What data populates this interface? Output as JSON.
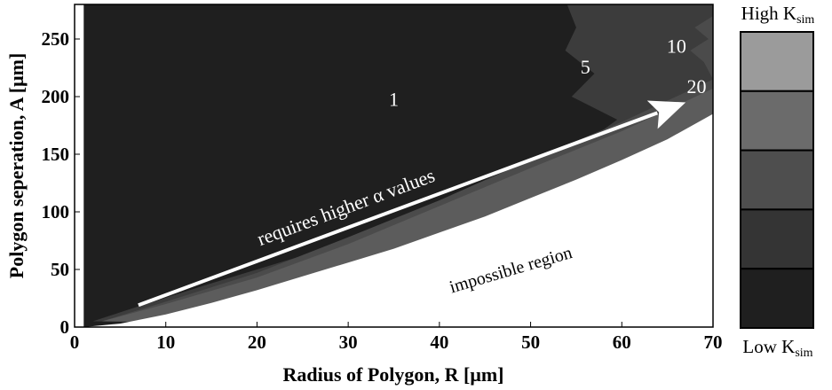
{
  "chart_data": {
    "type": "contour",
    "xlabel": "Radius of Polygon, R [μm]",
    "ylabel": "Polygon seperation, A [μm]",
    "xlim": [
      0,
      70
    ],
    "ylim": [
      0,
      280
    ],
    "xticks": [
      0,
      10,
      20,
      30,
      40,
      50,
      60,
      70
    ],
    "yticks": [
      0,
      50,
      100,
      150,
      200,
      250
    ],
    "contour_labels": [
      "1",
      "5",
      "10",
      "20"
    ],
    "regions": [
      {
        "name": "1",
        "color": "#1f1f1f",
        "boundary": [
          [
            31.5,
            280
          ],
          [
            30.5,
            250
          ],
          [
            31.2,
            230
          ],
          [
            30.8,
            200
          ],
          [
            31.5,
            180
          ],
          [
            30.7,
            160
          ],
          [
            31.8,
            140
          ],
          [
            30.5,
            120
          ],
          [
            31.0,
            100
          ],
          [
            26.0,
            85
          ],
          [
            20.0,
            66
          ],
          [
            15.0,
            50
          ],
          [
            10.0,
            34
          ],
          [
            5.0,
            17
          ],
          [
            2.0,
            6
          ]
        ]
      },
      {
        "name": "5",
        "color": "#3c3c3c",
        "boundary": [
          [
            54.0,
            280
          ],
          [
            55.0,
            260
          ],
          [
            53.8,
            240
          ],
          [
            57.0,
            220
          ],
          [
            54.5,
            200
          ],
          [
            59.5,
            180
          ],
          [
            56.0,
            160
          ],
          [
            58.5,
            145
          ],
          [
            55.0,
            135
          ],
          [
            45.0,
            115
          ],
          [
            35.0,
            90
          ],
          [
            25.0,
            62
          ],
          [
            15.0,
            38
          ],
          [
            7.0,
            18
          ],
          [
            2.0,
            5
          ]
        ]
      },
      {
        "name": "10",
        "color": "#4b4b4b",
        "boundary": [
          [
            70.0,
            270
          ],
          [
            68.0,
            260
          ],
          [
            69.5,
            250
          ],
          [
            67.5,
            240
          ],
          [
            69.0,
            230
          ],
          [
            70.0,
            215
          ],
          [
            60.0,
            178
          ],
          [
            50.0,
            145
          ],
          [
            40.0,
            110
          ],
          [
            30.0,
            78
          ],
          [
            20.0,
            47
          ],
          [
            10.0,
            22
          ],
          [
            3.0,
            5
          ]
        ]
      },
      {
        "name": "20",
        "color": "#5c5c5c",
        "boundary": [
          [
            70.0,
            207
          ],
          [
            60.0,
            170
          ],
          [
            50.0,
            138
          ],
          [
            40.0,
            105
          ],
          [
            30.0,
            72
          ],
          [
            20.0,
            43
          ],
          [
            10.0,
            20
          ],
          [
            3.0,
            5
          ]
        ]
      }
    ],
    "impossible_boundary": [
      [
        1.0,
        0
      ],
      [
        5.0,
        3
      ],
      [
        10.0,
        11
      ],
      [
        15.0,
        21
      ],
      [
        20.0,
        32
      ],
      [
        25.0,
        44
      ],
      [
        30.0,
        56
      ],
      [
        35.0,
        68
      ],
      [
        40.0,
        82
      ],
      [
        45.0,
        96
      ],
      [
        50.0,
        112
      ],
      [
        55.0,
        128
      ],
      [
        60.0,
        145
      ],
      [
        65.0,
        163
      ],
      [
        70.0,
        185
      ]
    ],
    "arrow": {
      "from": [
        7,
        19
      ],
      "to": [
        67,
        195
      ]
    },
    "legend": {
      "type": "colorbar",
      "placement": "right",
      "top_label": "High K",
      "top_label_sub": "sim",
      "bottom_label": "Low K",
      "bottom_label_sub": "sim",
      "bands": [
        "#9b9b9b",
        "#6b6b6b",
        "#4e4e4e",
        "#343434",
        "#1f1f1f"
      ]
    }
  },
  "annotations": {
    "arrow_text": "requires higher α values",
    "impossible_text": "impossible region",
    "label_1": "1",
    "label_5": "5",
    "label_10": "10",
    "label_20": "20"
  }
}
